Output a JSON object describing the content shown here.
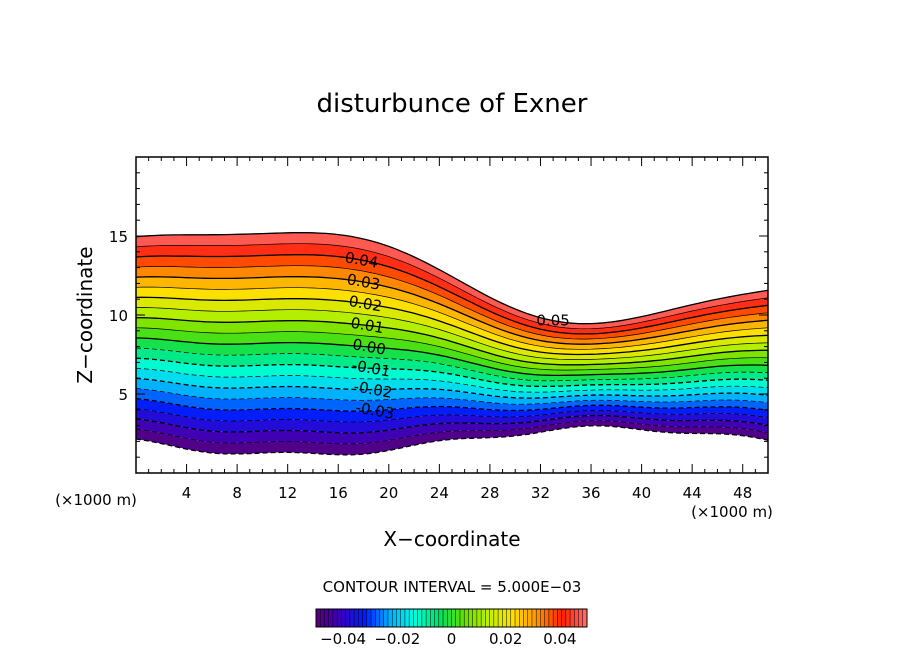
{
  "chart_data": {
    "type": "contour",
    "title": "disturbunce of Exner",
    "xlabel": "X−coordinate",
    "ylabel": "Z−coordinate",
    "x_unit_left": "(×1000 m)",
    "x_unit_right": "(×1000 m)",
    "xlim": [
      0,
      50
    ],
    "ylim": [
      0,
      20
    ],
    "x_ticks": [
      4,
      8,
      12,
      16,
      20,
      24,
      28,
      32,
      36,
      40,
      44,
      48
    ],
    "y_ticks": [
      5,
      10,
      15
    ],
    "contour_interval_text": "CONTOUR INTERVAL = 5.000E−03",
    "contour_interval": 0.005,
    "level_range": [
      -0.05,
      0.05
    ],
    "contour_labels": [
      "0.05",
      "0.04",
      "0.03",
      "0.02",
      "0.01",
      "0.00",
      "-0.01",
      "-0.02",
      "-0.03"
    ],
    "colorbar_ticks": [
      "−0.04",
      "−0.02",
      "0",
      "0.02",
      "0.04"
    ],
    "colorbar_tick_values": [
      -0.04,
      -0.02,
      0,
      0.02,
      0.04
    ],
    "colormap": [
      "#5a0075",
      "#3a00c0",
      "#0020ff",
      "#00b0ff",
      "#00ffe0",
      "#00e060",
      "#60e000",
      "#c0f000",
      "#ffe000",
      "#ff9000",
      "#ff2000",
      "#ff7070"
    ]
  }
}
